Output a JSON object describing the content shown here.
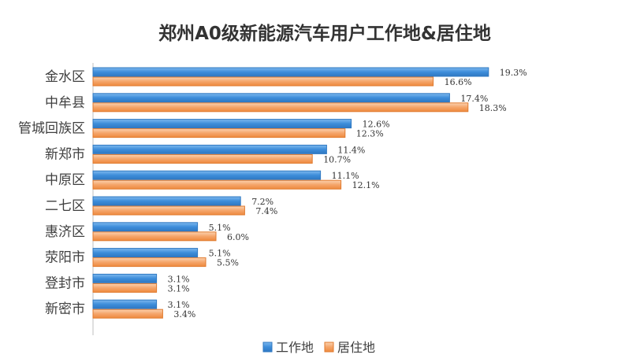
{
  "chart_data": {
    "type": "bar",
    "orientation": "horizontal",
    "title": "郑州A0级新能源汽车用户工作地&居住地",
    "categories": [
      "金水区",
      "中牟县",
      "管城回族区",
      "新郑市",
      "中原区",
      "二七区",
      "惠济区",
      "荥阳市",
      "登封市",
      "新密市"
    ],
    "series": [
      {
        "name": "工作地",
        "values": [
          19.3,
          17.4,
          12.6,
          11.4,
          11.1,
          7.2,
          5.1,
          5.1,
          3.1,
          3.1
        ],
        "labels": [
          "19.3%",
          "17.4%",
          "12.6%",
          "11.4%",
          "11.1%",
          "7.2%",
          "5.1%",
          "5.1%",
          "3.1%",
          "3.1%"
        ],
        "color": "#4A90D9"
      },
      {
        "name": "居住地",
        "values": [
          16.6,
          18.3,
          12.3,
          10.7,
          12.1,
          7.4,
          6.0,
          5.5,
          3.1,
          3.4
        ],
        "labels": [
          "16.6%",
          "18.3%",
          "12.3%",
          "10.7%",
          "12.1%",
          "7.4%",
          "6.0%",
          "5.5%",
          "3.1%",
          "3.4%"
        ],
        "color": "#F08A3C"
      }
    ],
    "xlim": [
      0,
      20
    ],
    "xlabel": "",
    "ylabel": "",
    "grid": false,
    "legend_position": "bottom-center"
  }
}
